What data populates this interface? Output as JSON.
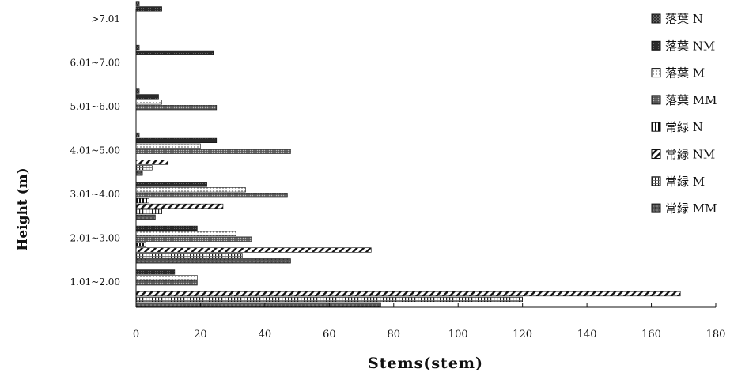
{
  "chart_data": {
    "type": "bar",
    "orientation": "horizontal",
    "xlabel": "Stems(stem)",
    "ylabel": "Height (m)",
    "xlim": [
      0,
      180
    ],
    "x_ticks": [
      0,
      20,
      40,
      60,
      80,
      100,
      120,
      140,
      160,
      180
    ],
    "categories": [
      "1.01~2.00",
      "2.01~3.00",
      "3.01~4.00",
      "4.01~5.00",
      "5.01~6.00",
      "6.01~7.00",
      ">7.01"
    ],
    "grid": false,
    "legend_position": "right",
    "series": [
      {
        "name": "落葉 N",
        "pattern": "fine-cross",
        "values": [
          0,
          0,
          0,
          1,
          1,
          1,
          1
        ]
      },
      {
        "name": "落葉 NM",
        "pattern": "dark",
        "values": [
          12,
          19,
          22,
          25,
          7,
          24,
          8
        ]
      },
      {
        "name": "落葉 M",
        "pattern": "dots",
        "values": [
          19,
          31,
          34,
          20,
          8,
          0,
          0
        ]
      },
      {
        "name": "落葉 MM",
        "pattern": "dense-dots",
        "values": [
          19,
          36,
          47,
          48,
          25,
          0,
          0
        ]
      },
      {
        "name": "常緑 N",
        "pattern": "vertical",
        "values": [
          0,
          3,
          4,
          0,
          0,
          0,
          0
        ]
      },
      {
        "name": "常緑 NM",
        "pattern": "diagonal",
        "values": [
          169,
          73,
          27,
          10,
          0,
          0,
          0
        ]
      },
      {
        "name": "常緑 M",
        "pattern": "grid",
        "values": [
          120,
          33,
          8,
          5,
          0,
          0,
          0
        ]
      },
      {
        "name": "常緑 MM",
        "pattern": "mottled",
        "values": [
          76,
          48,
          6,
          2,
          0,
          0,
          0
        ]
      }
    ]
  }
}
